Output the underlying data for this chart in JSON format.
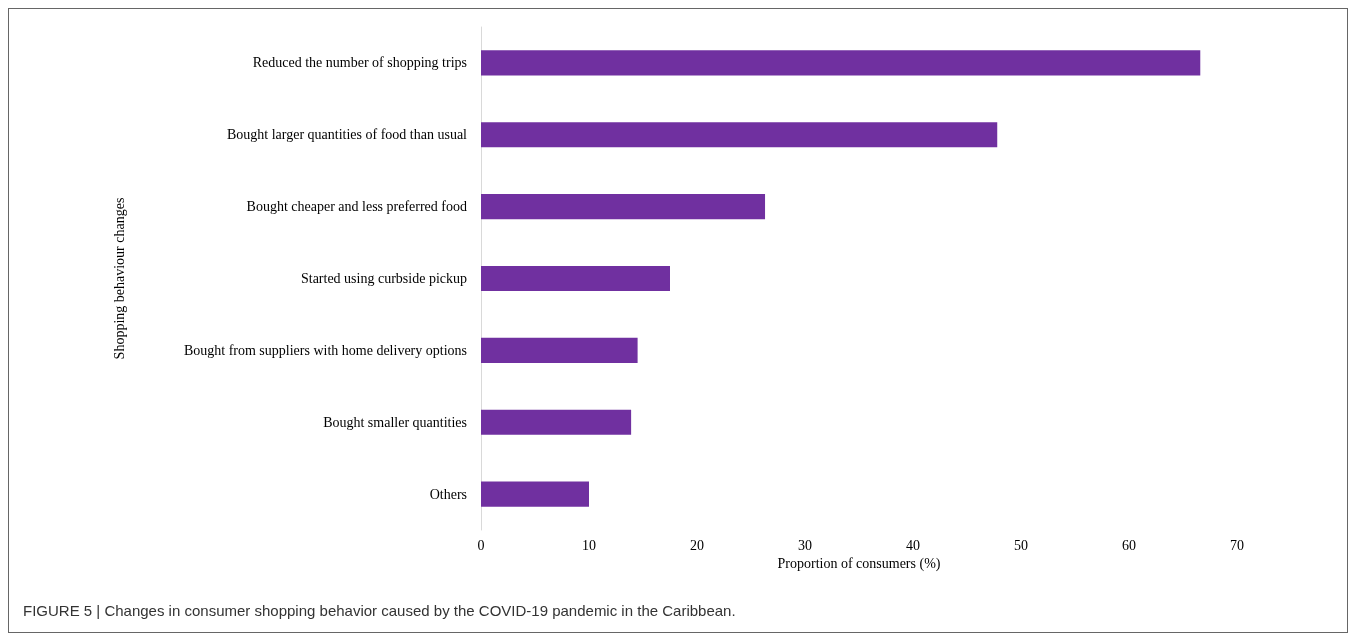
{
  "chart_data": {
    "type": "bar",
    "orientation": "horizontal",
    "xlabel": "Proportion of consumers (%)",
    "ylabel": "Shopping behaviour changes",
    "categories": [
      "Reduced the number of shopping trips",
      "Bought larger quantities of food than usual",
      "Bought cheaper and less preferred food",
      "Started using curbside pickup",
      "Bought from suppliers with home delivery options",
      "Bought smaller quantities",
      "Others"
    ],
    "values": [
      66.6,
      47.8,
      26.3,
      17.5,
      14.5,
      13.9,
      10.0
    ],
    "color": "#7030a0",
    "xlim": [
      0,
      70
    ],
    "xticks": [
      0,
      10,
      20,
      30,
      40,
      50,
      60,
      70
    ],
    "grid": false,
    "annotations": [
      "FIGURE 5 | Changes in consumer shopping behavior caused by the COVID-19 pandemic in the Caribbean."
    ]
  }
}
